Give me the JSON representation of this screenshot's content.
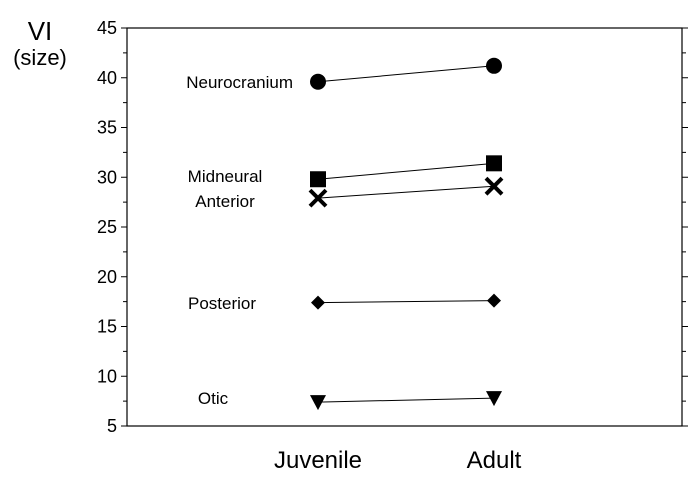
{
  "chart_data": {
    "type": "line",
    "title": "",
    "ylabel": "VI",
    "ylabel_sub": "(size)",
    "xlabel": "",
    "categories": [
      "Juvenile",
      "Adult"
    ],
    "ylim": [
      5,
      45
    ],
    "yticks": [
      5,
      10,
      15,
      20,
      25,
      30,
      35,
      40,
      45
    ],
    "grid": false,
    "legend": "none",
    "series": [
      {
        "name": "Neurocranium",
        "marker": "circle",
        "values": [
          39.6,
          41.2
        ]
      },
      {
        "name": "Midneural",
        "marker": "square",
        "values": [
          29.8,
          31.4
        ]
      },
      {
        "name": "Anterior",
        "marker": "x",
        "values": [
          27.9,
          29.1
        ]
      },
      {
        "name": "Posterior",
        "marker": "diamond",
        "values": [
          17.4,
          17.6
        ]
      },
      {
        "name": "Otic",
        "marker": "triangle-down",
        "values": [
          7.4,
          7.8
        ]
      }
    ]
  }
}
